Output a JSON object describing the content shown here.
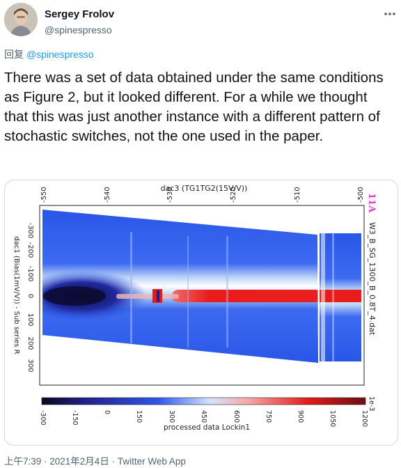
{
  "tweet": {
    "author": {
      "display_name": "Sergey Frolov",
      "handle": "@spinespresso"
    },
    "reply_prefix": "回复 ",
    "reply_to": "@spinespresso",
    "text": "There was a set of data obtained under the same conditions as Figure 2, but it looked different. For a while we thought that this was just another instance with a different pattern of stochastic switches, not the one used in the paper.",
    "timestamp": "上午7:39 · 2021年2月4日 · Twitter Web App",
    "icons": {
      "menu": "more-horizontal-icon"
    }
  },
  "chart_data": {
    "type": "heatmap",
    "title": "dac3 (TG1TG2(15V/V))",
    "top_axis_ticks": [
      "-550",
      "-540",
      "-530",
      "-520",
      "-510",
      "-500"
    ],
    "left_axis_label": "dac1 (Bias(1mV/V)) - Sub series R",
    "left_axis_ticks": [
      "-300",
      "-200",
      "-100",
      "0",
      "100",
      "200",
      "300"
    ],
    "right_label": "W3_B_SG_1300_B_0.8T_4.dat",
    "annotation": "11A",
    "colorbar": {
      "label": "processed data Lockin1",
      "ticks": [
        "-300",
        "-150",
        "0",
        "150",
        "300",
        "450",
        "600",
        "750",
        "900",
        "1050",
        "1200"
      ],
      "exponent": "1e-3",
      "colors": [
        "#0a0820",
        "#23218e",
        "#2f57ea",
        "#d4e4fb",
        "#f6a6a6",
        "#e31b1b",
        "#6e0e13"
      ]
    }
  }
}
